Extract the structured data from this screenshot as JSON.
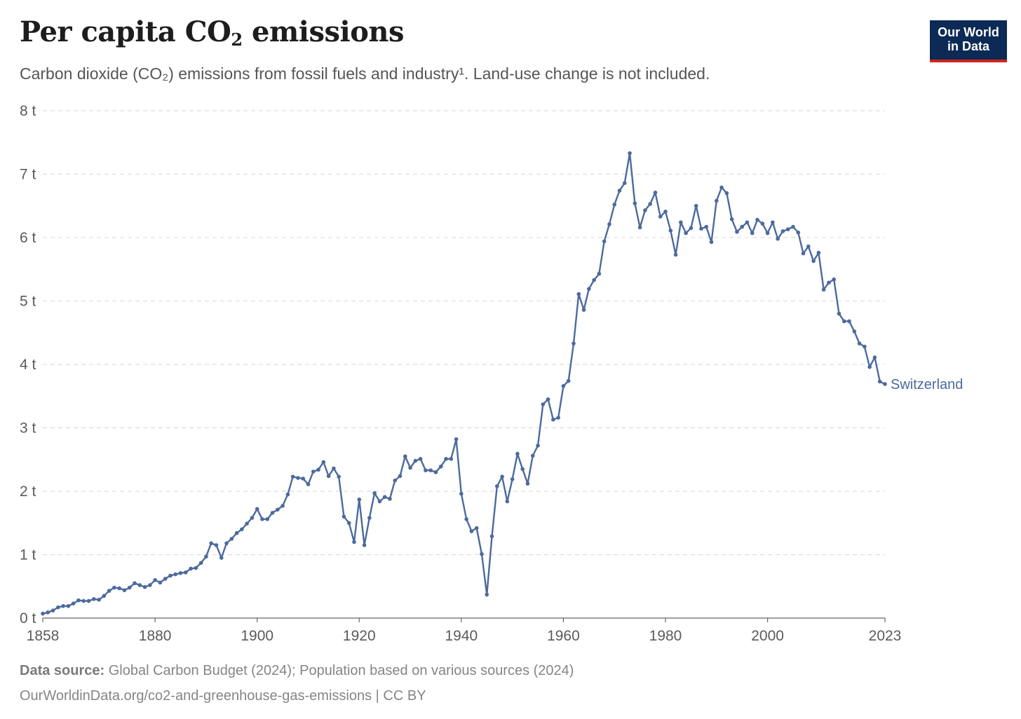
{
  "header": {
    "title_main": "Per capita CO",
    "title_sub": "2",
    "title_end": " emissions",
    "subtitle": "Carbon dioxide (CO₂) emissions from fossil fuels and industry¹. Land-use change is not included."
  },
  "logo": {
    "line1": "Our World",
    "line2": "in Data"
  },
  "footer": {
    "source_label": "Data source:",
    "source_text": " Global Carbon Budget (2024); Population based on various sources (2024)",
    "credit": "OurWorldinData.org/co2-and-greenhouse-gas-emissions | CC BY"
  },
  "colors": {
    "series": "#4c6a9c",
    "grid": "#dddddd",
    "axis": "#666666",
    "tick_text": "#5b5b5b"
  },
  "chart_data": {
    "type": "line",
    "title": "Per capita CO₂ emissions",
    "subtitle": "Carbon dioxide (CO₂) emissions from fossil fuels and industry¹. Land-use change is not included.",
    "xlabel": "",
    "ylabel": "",
    "xlim": [
      1858,
      2023
    ],
    "ylim": [
      0,
      8
    ],
    "x_ticks": [
      1858,
      1880,
      1900,
      1920,
      1940,
      1960,
      1980,
      2000,
      2023
    ],
    "y_ticks": [
      0,
      1,
      2,
      3,
      4,
      5,
      6,
      7,
      8
    ],
    "y_tick_labels": [
      "0 t",
      "1 t",
      "2 t",
      "3 t",
      "4 t",
      "5 t",
      "6 t",
      "7 t",
      "8 t"
    ],
    "grid": "horizontal dashed",
    "legend": "label at line end (right)",
    "series": [
      {
        "name": "Switzerland",
        "start_year": 1858,
        "values": [
          0.07,
          0.09,
          0.12,
          0.17,
          0.19,
          0.19,
          0.23,
          0.28,
          0.27,
          0.27,
          0.3,
          0.29,
          0.35,
          0.43,
          0.48,
          0.47,
          0.44,
          0.48,
          0.55,
          0.52,
          0.49,
          0.52,
          0.6,
          0.56,
          0.62,
          0.67,
          0.69,
          0.71,
          0.72,
          0.78,
          0.79,
          0.87,
          0.97,
          1.18,
          1.15,
          0.95,
          1.18,
          1.25,
          1.34,
          1.4,
          1.49,
          1.58,
          1.72,
          1.56,
          1.56,
          1.66,
          1.71,
          1.77,
          1.95,
          2.23,
          2.21,
          2.2,
          2.11,
          2.31,
          2.34,
          2.46,
          2.24,
          2.36,
          2.23,
          1.6,
          1.5,
          1.2,
          1.87,
          1.15,
          1.58,
          1.97,
          1.84,
          1.91,
          1.88,
          2.17,
          2.24,
          2.55,
          2.37,
          2.48,
          2.51,
          2.33,
          2.33,
          2.3,
          2.39,
          2.51,
          2.51,
          2.82,
          1.96,
          1.56,
          1.37,
          1.42,
          1.01,
          0.37,
          1.29,
          2.08,
          2.23,
          1.84,
          2.19,
          2.59,
          2.35,
          2.12,
          2.56,
          2.72,
          3.37,
          3.45,
          3.13,
          3.16,
          3.66,
          3.74,
          4.33,
          5.11,
          4.86,
          5.19,
          5.33,
          5.43,
          5.94,
          6.21,
          6.52,
          6.74,
          6.86,
          7.33,
          6.54,
          6.16,
          6.43,
          6.53,
          6.71,
          6.33,
          6.41,
          6.11,
          5.73,
          6.24,
          6.07,
          6.15,
          6.5,
          6.14,
          6.17,
          5.93,
          6.58,
          6.79,
          6.7,
          6.29,
          6.09,
          6.17,
          6.24,
          6.07,
          6.28,
          6.22,
          6.07,
          6.24,
          5.98,
          6.1,
          6.13,
          6.17,
          6.08,
          5.75,
          5.86,
          5.63,
          5.76,
          5.18,
          5.29,
          5.34,
          4.8,
          4.68,
          4.68,
          4.52,
          4.33,
          4.28,
          3.96,
          4.11,
          3.73,
          3.69
        ]
      }
    ]
  }
}
